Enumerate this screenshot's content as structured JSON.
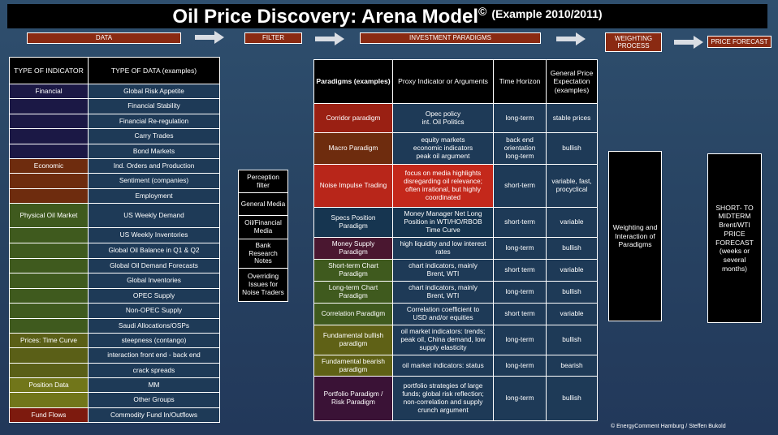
{
  "title": {
    "main": "Oil Price Discovery:  Arena Model",
    "copyright": "©",
    "sub": "(Example 2010/2011)"
  },
  "stages": {
    "data": "DATA",
    "filter": "FILTER",
    "investment": "INVESTMENT PARADIGMS",
    "weighting_line1": "WEIGHTING",
    "weighting_line2": "PROCESS",
    "forecast": "PRICE FORECAST"
  },
  "colors": {
    "financial": "#1b1845",
    "economic": "#6e2c0e",
    "physical": "#3f5a1e",
    "prices": "#5a5f17",
    "position": "#71761a",
    "fundflows": "#7d1a0e"
  },
  "indicators": {
    "col1_header": "TYPE OF INDICATOR",
    "col2_header": "TYPE OF DATA (examples)",
    "groups": [
      {
        "label": "Financial",
        "color": "#1b1845",
        "items": [
          "Global Risk Appetite",
          "Financial Stability",
          "Financial Re-regulation",
          "Carry Trades",
          "Bond Markets"
        ]
      },
      {
        "label": "Economic",
        "color": "#6e2c0e",
        "items": [
          "Ind. Orders and Production",
          "Sentiment (companies)",
          "Employment"
        ]
      },
      {
        "label": "Physical Oil Market",
        "color": "#3f5a1e",
        "items": [
          "US Weekly Demand",
          "US Weekly Inventories",
          "Global Oil Balance in Q1 & Q2",
          "Global Oil Demand Forecasts",
          "Global Inventories",
          "OPEC Supply",
          "Non-OPEC Supply",
          "Saudi Allocations/OSPs"
        ]
      },
      {
        "label": "Prices: Time Curve",
        "color": "#5a5f17",
        "items": [
          "steepness (contango)",
          "interaction front end - back end",
          "crack spreads"
        ]
      },
      {
        "label": "Position Data",
        "color": "#71761a",
        "items": [
          "MM",
          "Other Groups"
        ]
      },
      {
        "label": "Fund Flows",
        "color": "#7d1a0e",
        "items": [
          "Commodity Fund In/Outflows"
        ]
      }
    ]
  },
  "filter": {
    "items": [
      "Perception filter",
      "General Media",
      "Oil/Financial Media",
      "Bank Research Notes",
      "Overriding Issues for Noise Traders"
    ]
  },
  "paradigms": {
    "headers": [
      "Paradigms (examples)",
      "Proxy Indicator or Arguments",
      "Time Horizon",
      "General Price Expectation (examples)"
    ],
    "rows": [
      {
        "name": "Corridor paradigm",
        "proxy": "Opec policy\nint. Oil Politics",
        "horizon": "long-term",
        "expectation": "stable prices",
        "color": "#9a2013",
        "proxy_color": "#1e3a57"
      },
      {
        "name": "Macro Paradigm",
        "proxy": "equity markets\neconomic indicators\npeak oil argument",
        "horizon": "back end\norientation\nlong-term",
        "expectation": "bullish",
        "color": "#6e2c0e",
        "proxy_color": "#1e3a57"
      },
      {
        "name": "Noise Impulse Trading",
        "proxy": "focus on media highlights\ndisregarding oil relevance;\noften irrational, but highly\ncoordinated",
        "horizon": "short-term",
        "expectation": "variable, fast,\nprocyclical",
        "color": "#b8261a",
        "proxy_color": "#c4281b"
      },
      {
        "name": "Specs Position\nParadigm",
        "proxy": "Money Manager Net Long\nPosition in WTI/HO/RBOB\nTime Curve",
        "horizon": "short-term",
        "expectation": "variable",
        "color": "#163550",
        "proxy_color": "#163550"
      },
      {
        "name": "Money Supply\nParadigm",
        "proxy": "high liquidity and low interest\nrates",
        "horizon": "long-term",
        "expectation": "bullish",
        "color": "#4a1730",
        "proxy_color": "#1e3a57"
      },
      {
        "name": "Short-term Chart\nParadigm",
        "proxy": "chart indicators, mainly\nBrent, WTI",
        "horizon": "short term",
        "expectation": "variable",
        "color": "#3f5a1e",
        "proxy_color": "#1e3a57"
      },
      {
        "name": "Long-term Chart\nParadigm",
        "proxy": "chart indicators, mainly\nBrent, WTI",
        "horizon": "long-term",
        "expectation": "bullish",
        "color": "#3f5a1e",
        "proxy_color": "#1e3a57"
      },
      {
        "name": "Correlation Paradigm",
        "proxy": "Correlation coefficient to\nUSD and/or equities",
        "horizon": "short term",
        "expectation": "variable",
        "color": "#3f5a1e",
        "proxy_color": "#1e3a57"
      },
      {
        "name": "Fundamental bullish\nparadigm",
        "proxy": "oil market indicators: trends;\npeak oil, China demand, low\nsupply elasticity",
        "horizon": "long-term",
        "expectation": "bullish",
        "color": "#5f6116",
        "proxy_color": "#1e3a57"
      },
      {
        "name": "Fundamental bearish\nparadigm",
        "proxy": "oil market indicators: status",
        "horizon": "long-term",
        "expectation": "bearish",
        "color": "#5f6116",
        "proxy_color": "#1e3a57"
      },
      {
        "name": "Portfolio Paradigm /\nRisk Paradigm",
        "proxy": "portfolio strategies of large\nfunds; global risk reflection;\nnon-correlation and supply\ncrunch argument",
        "horizon": "long-term",
        "expectation": "bullish",
        "color": "#3a1236",
        "proxy_color": "#1e3a57"
      }
    ]
  },
  "weighting_box": "Weighting and\nInteraction of\nParadigms",
  "forecast_box": "SHORT-  TO\nMIDTERM\nBrent/WTI\nPRICE\nFORECAST\n(weeks or\nseveral\nmonths)",
  "credit": "© EnergyComment Hamburg / Steffen Bukold"
}
